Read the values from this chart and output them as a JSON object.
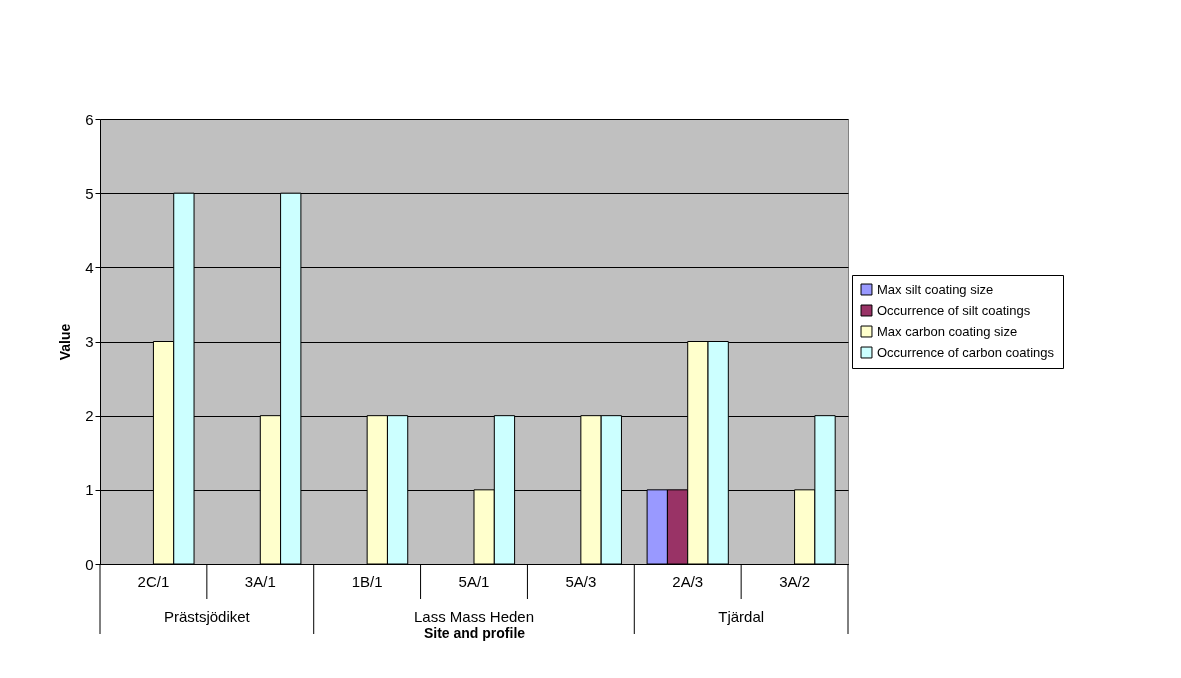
{
  "chart_data": {
    "type": "bar",
    "xlabel": "Site and profile",
    "ylabel": "Value",
    "categories": [
      "2C/1",
      "3A/1",
      "1B/1",
      "5A/1",
      "5A/3",
      "2A/3",
      "3A/2"
    ],
    "series": [
      {
        "name": "Max silt coating size",
        "color": "#9999ff",
        "values": [
          null,
          null,
          null,
          null,
          null,
          1,
          null
        ]
      },
      {
        "name": "Occurrence of silt coatings",
        "color": "#993366",
        "values": [
          null,
          null,
          null,
          null,
          null,
          1,
          null
        ]
      },
      {
        "name": "Max carbon coating size",
        "color": "#ffffcc",
        "values": [
          3,
          2,
          2,
          1,
          2,
          3,
          1
        ]
      },
      {
        "name": "Occurrence of carbon coatings",
        "color": "#ccffff",
        "values": [
          5,
          5,
          2,
          2,
          2,
          3,
          2
        ]
      }
    ],
    "ylim": [
      0,
      6
    ],
    "yticks": [
      0,
      1,
      2,
      3,
      4,
      5,
      6
    ],
    "grid": "y",
    "legend": "right",
    "annotations": [
      "Prästsjödiket",
      "Lass Mass Heden",
      "Tjärdal"
    ]
  }
}
